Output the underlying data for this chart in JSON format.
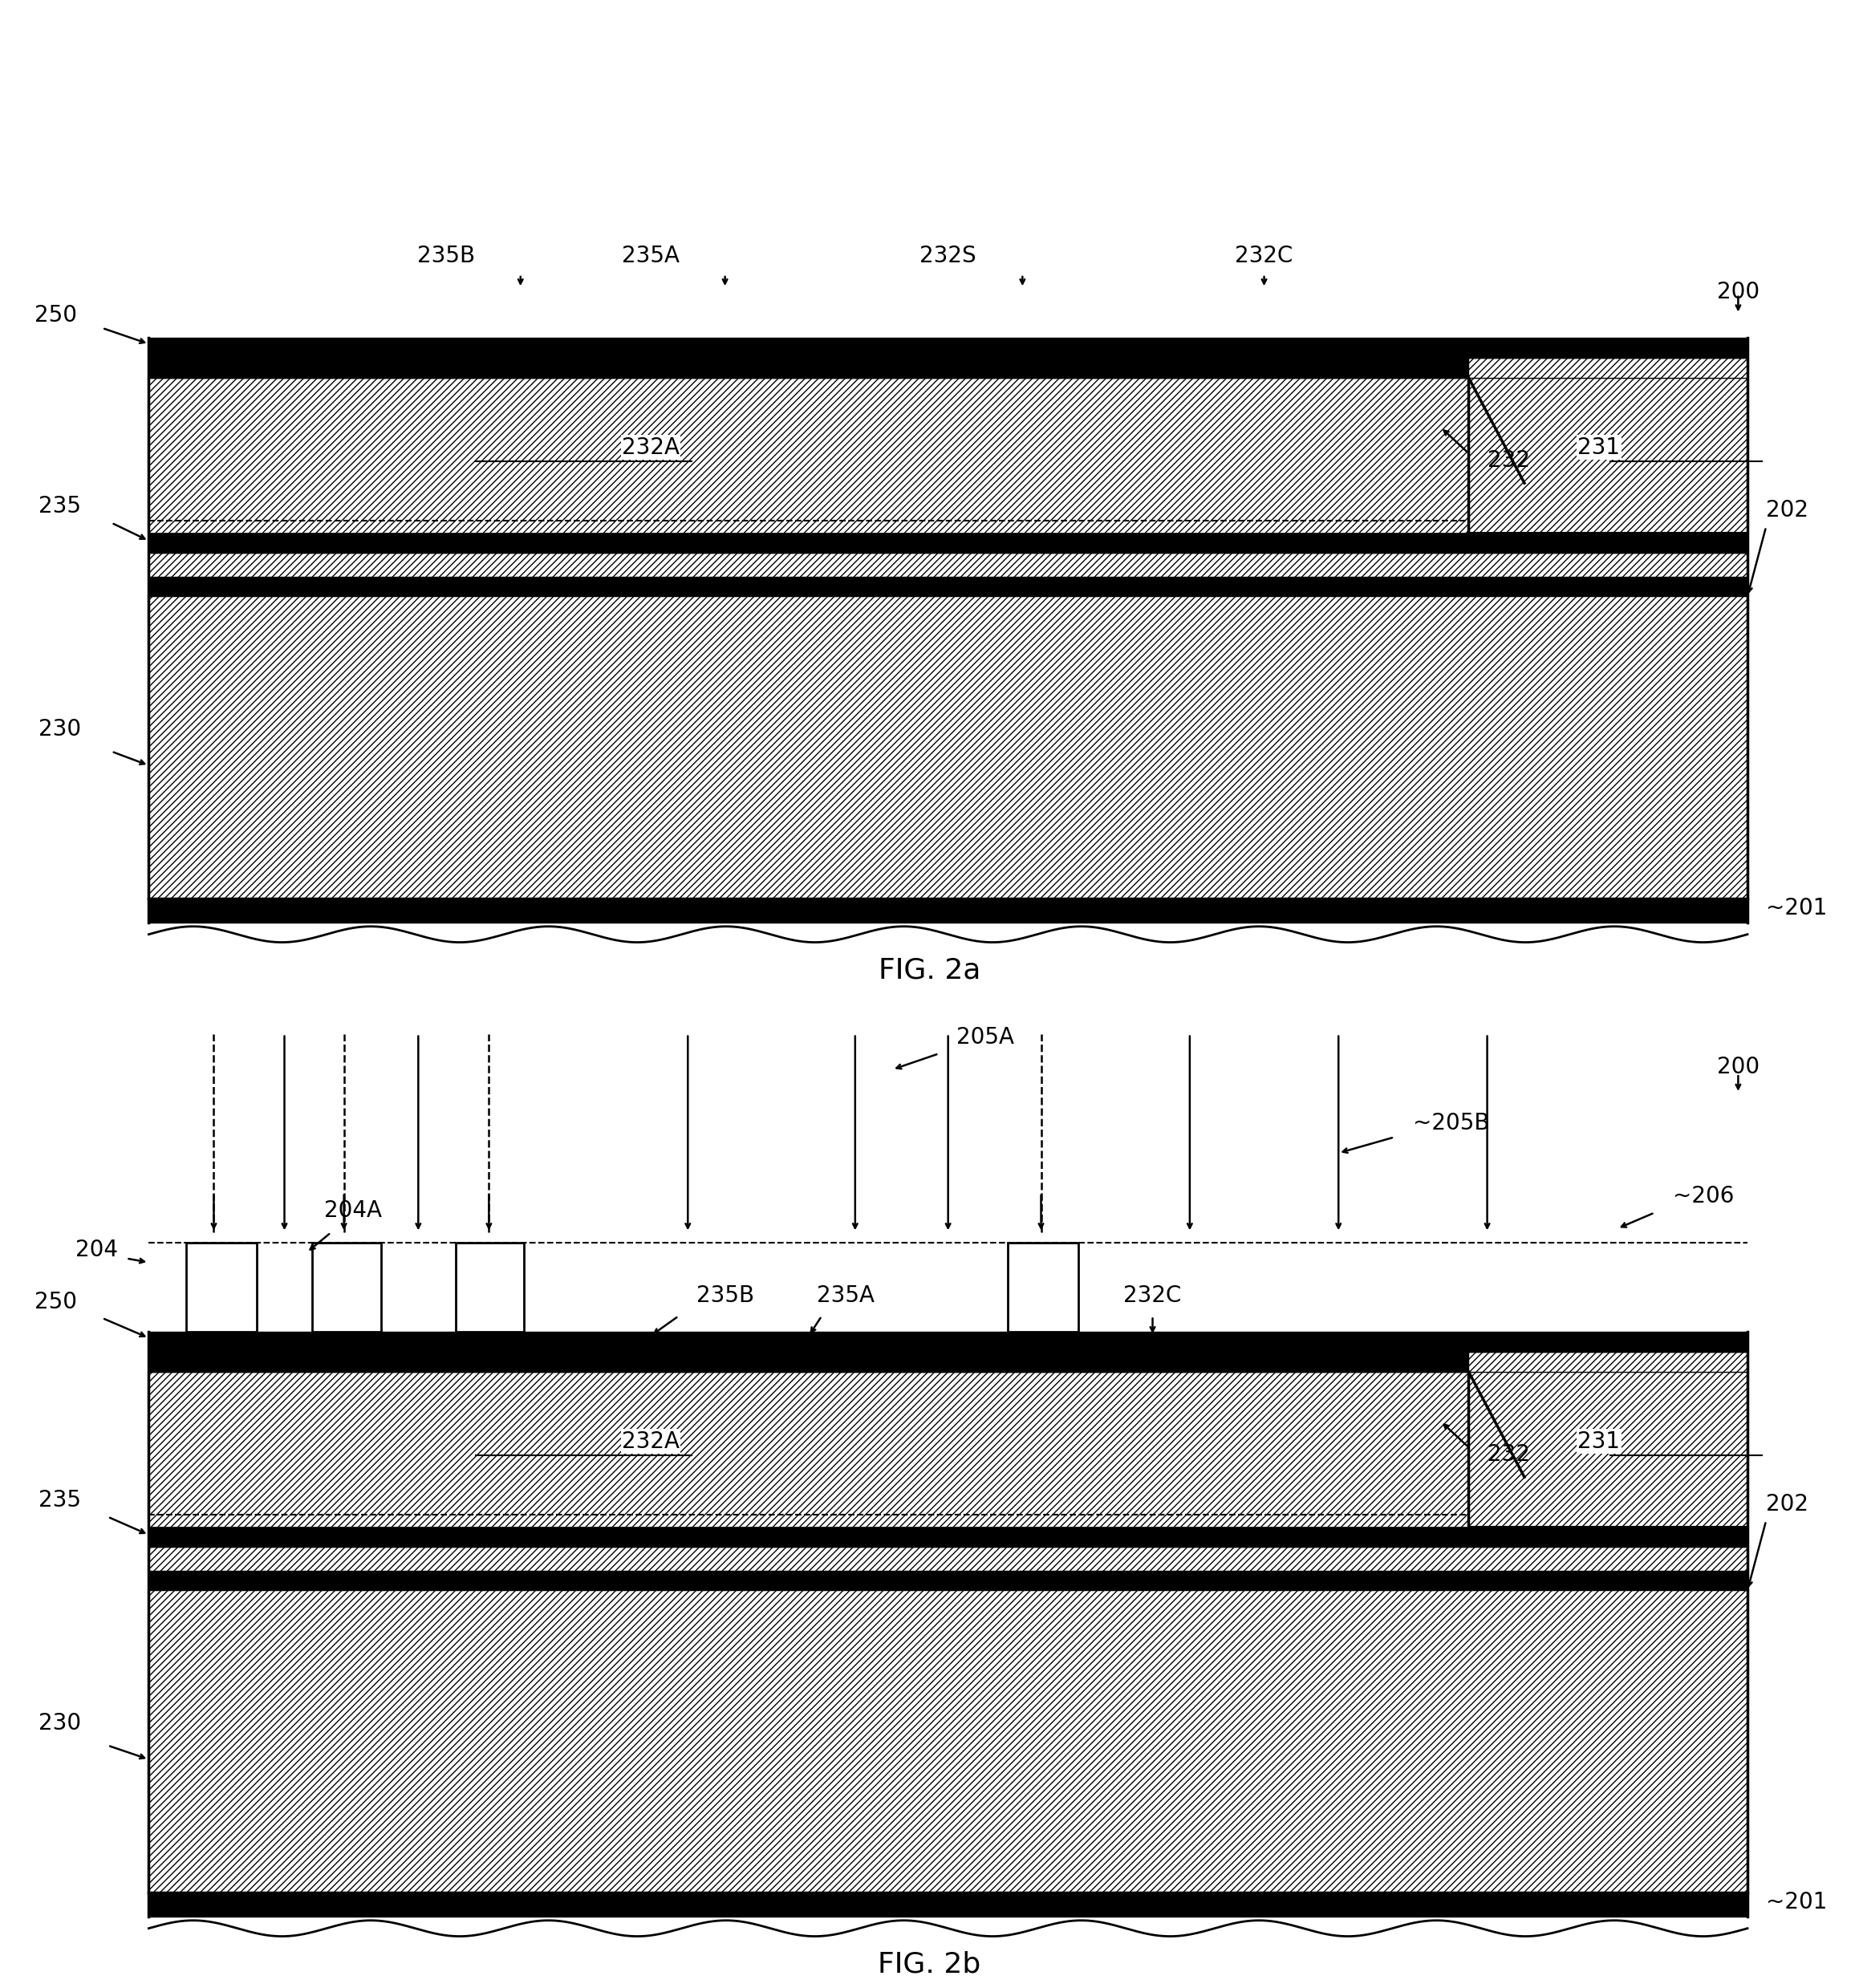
{
  "fig_title_a": "FIG. 2a",
  "fig_title_b": "FIG. 2b",
  "bg_color": "#ffffff",
  "line_color": "#000000",
  "hatch_color": "#000000",
  "labels": {
    "200_a": "200",
    "250_a": "250",
    "235_a": "235",
    "235A_a": "235A",
    "235B_a": "235B",
    "232S_a": "232S",
    "232C_a": "232C",
    "232A_a": "232A",
    "232_a": "232",
    "231_a": "231",
    "230_a": "230",
    "202_a": "202",
    "201_a": "201",
    "200_b": "200",
    "250_b": "250",
    "204_b": "204",
    "204A_b": "204A",
    "205A_b": "205A",
    "205B_b": "205B",
    "206_b": "206",
    "235_b": "235",
    "235A_b": "235A",
    "235B_b": "235B",
    "232C_b": "232C",
    "232A_b": "232A",
    "232_b": "232",
    "231_b": "231",
    "230_b": "230",
    "202_b": "202",
    "201_b": "201"
  }
}
